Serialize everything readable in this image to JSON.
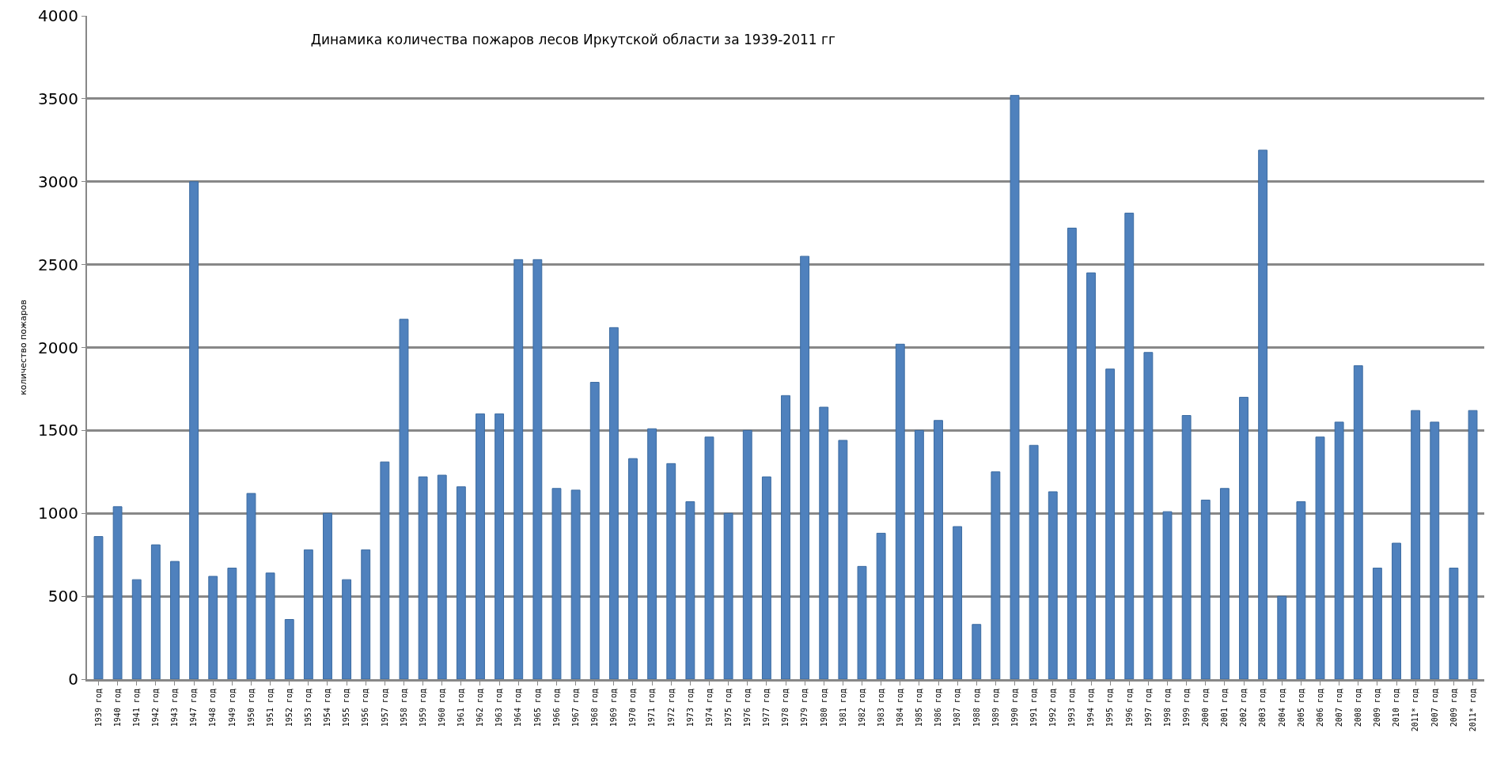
{
  "chart_data": {
    "type": "bar",
    "title": "Динамика количества пожаров лесов Иркутской области за 1939-2011 гг",
    "ylabel": "количество пожаров",
    "categories": [
      "1939 год",
      "1940 год",
      "1941 год",
      "1942 год",
      "1943 год",
      "1947 год",
      "1948 год",
      "1949 год",
      "1950 год",
      "1951 год",
      "1952 год",
      "1953 год",
      "1954 год",
      "1955 год",
      "1956 год",
      "1957 год",
      "1958 год",
      "1959 год",
      "1960 год",
      "1961 год",
      "1962 год",
      "1963 год",
      "1964 год",
      "1965 год",
      "1966 год",
      "1967 год",
      "1968 год",
      "1969 год",
      "1970 год",
      "1971 год",
      "1972 год",
      "1973 год",
      "1974 год",
      "1975 год",
      "1976 год",
      "1977 год",
      "1978 год",
      "1979 год",
      "1980 год",
      "1981 год",
      "1982 год",
      "1983 год",
      "1984 год",
      "1985 год",
      "1986 год",
      "1987 год",
      "1988 год",
      "1989 год",
      "1990 год",
      "1991 год",
      "1992 год",
      "1993 год",
      "1994 год",
      "1995 год",
      "1996 год",
      "1997 год",
      "1998 год",
      "1999 год",
      "2000 год",
      "2001 год",
      "2002 год",
      "2003 год",
      "2004 год",
      "2005 год",
      "2006 год",
      "2007 год",
      "2008 год",
      "2009 год",
      "2010 год",
      "2011* год",
      "2007 год",
      "2009 год",
      "2011* год"
    ],
    "values": [
      860,
      1040,
      600,
      810,
      710,
      3000,
      620,
      670,
      1120,
      640,
      360,
      780,
      1000,
      600,
      780,
      1310,
      2170,
      1220,
      1230,
      1160,
      1600,
      1600,
      2530,
      2530,
      1150,
      1140,
      1790,
      2120,
      1330,
      1510,
      1300,
      1070,
      1460,
      1000,
      1500,
      1220,
      1710,
      2550,
      1640,
      1440,
      680,
      880,
      2020,
      1500,
      1560,
      920,
      330,
      1250,
      3520,
      1410,
      1130,
      2720,
      2450,
      1870,
      2810,
      1970,
      1010,
      1590,
      1080,
      1150,
      1700,
      3190,
      500,
      1070,
      1460,
      1550,
      1890,
      670,
      820,
      1620,
      1550,
      670,
      1620
    ],
    "color": "#4f81bd",
    "ylim": [
      0,
      4000
    ],
    "yticks": [
      0,
      500,
      1000,
      1500,
      2000,
      2500,
      3000,
      3500,
      4000
    ],
    "grid": "y"
  }
}
